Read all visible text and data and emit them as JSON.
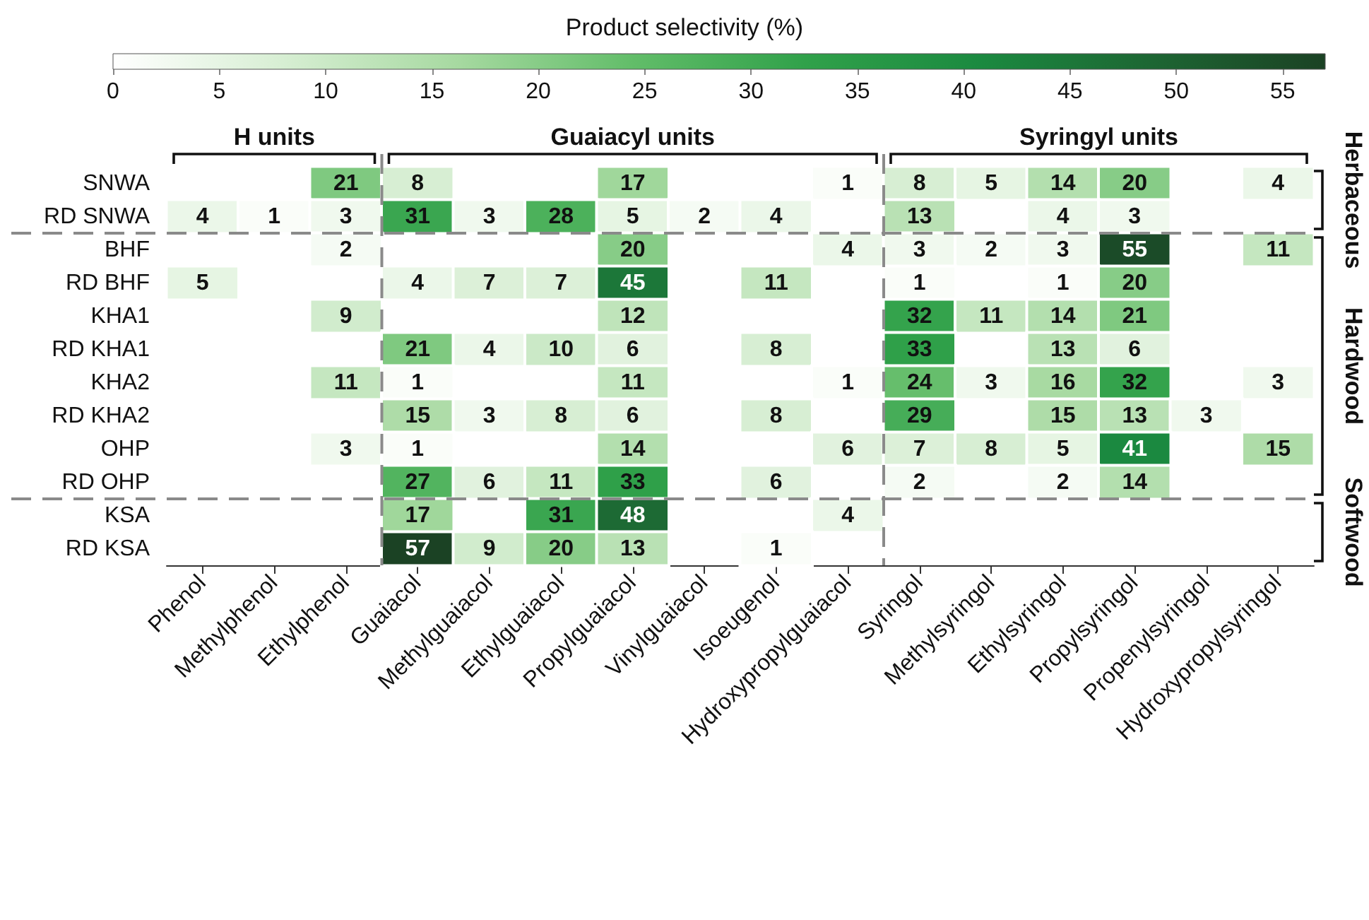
{
  "chart_data": {
    "type": "heatmap",
    "clabel": "Product selectivity (%)",
    "categories": [
      "Phenol",
      "Methylphenol",
      "Ethylphenol",
      "Guaiacol",
      "Methylguaiacol",
      "Ethylguaiacol",
      "Propylguaiacol",
      "Vinylguaiacol",
      "Isoeugenol",
      "Hydroxypropylguaiacol",
      "Syringol",
      "Methylsyringol",
      "Ethylsyringol",
      "Propylsyringol",
      "Propenylsyringol",
      "Hydroxypropylsyringol"
    ],
    "y_categories": [
      "SNWA",
      "RD SNWA",
      "BHF",
      "RD BHF",
      "KHA1",
      "RD KHA1",
      "KHA2",
      "RD KHA2",
      "OHP",
      "RD OHP",
      "KSA",
      "RD KSA"
    ],
    "cells": [
      [
        null,
        null,
        21,
        8,
        null,
        null,
        17,
        null,
        null,
        1,
        8,
        5,
        14,
        20,
        null,
        4
      ],
      [
        4,
        1,
        3,
        31,
        3,
        28,
        5,
        2,
        4,
        null,
        13,
        null,
        4,
        3,
        null,
        null
      ],
      [
        null,
        null,
        2,
        null,
        null,
        null,
        20,
        null,
        null,
        4,
        3,
        2,
        3,
        55,
        null,
        11
      ],
      [
        5,
        null,
        null,
        4,
        7,
        7,
        45,
        null,
        11,
        null,
        1,
        null,
        1,
        20,
        null,
        null
      ],
      [
        null,
        null,
        9,
        null,
        null,
        null,
        12,
        null,
        null,
        null,
        32,
        11,
        14,
        21,
        null,
        null
      ],
      [
        null,
        null,
        null,
        21,
        4,
        10,
        6,
        null,
        8,
        null,
        33,
        null,
        13,
        6,
        null,
        null
      ],
      [
        null,
        null,
        11,
        1,
        null,
        null,
        11,
        null,
        null,
        1,
        24,
        3,
        16,
        32,
        null,
        3
      ],
      [
        null,
        null,
        null,
        15,
        3,
        8,
        6,
        null,
        8,
        null,
        29,
        null,
        15,
        13,
        3,
        null
      ],
      [
        null,
        null,
        3,
        1,
        null,
        null,
        14,
        null,
        null,
        6,
        7,
        8,
        5,
        41,
        null,
        15
      ],
      [
        null,
        null,
        null,
        27,
        6,
        11,
        33,
        null,
        6,
        null,
        2,
        null,
        2,
        14,
        null,
        null
      ],
      [
        null,
        null,
        null,
        17,
        null,
        31,
        48,
        null,
        null,
        4,
        null,
        null,
        null,
        null,
        null,
        null
      ],
      [
        null,
        null,
        null,
        57,
        9,
        20,
        13,
        null,
        1,
        null,
        null,
        null,
        null,
        null,
        null,
        null
      ]
    ],
    "clim": [
      0,
      57
    ],
    "cticks": [
      0,
      5,
      10,
      15,
      20,
      25,
      30,
      35,
      40,
      45,
      50,
      55
    ],
    "data_labels": true,
    "annotations": [
      "H units",
      "Guaiacyl units",
      "Syringyl units",
      "Herbaceous",
      "Hardwood",
      "Softwood"
    ]
  }
}
